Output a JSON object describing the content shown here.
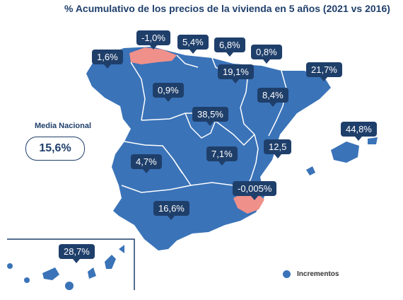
{
  "title": "% Acumulativo de los precios de la vivienda en 5 años (2021 vs 2016)",
  "colors": {
    "increase": "#3a73b8",
    "decrease": "#f0908a",
    "label_bg": "#1f3f6b",
    "borders": "#ffffff"
  },
  "national_average": {
    "label": "Media Nacional",
    "value": "15,6%"
  },
  "legend": {
    "label": "Incrementos"
  },
  "regions": [
    {
      "name": "Galicia",
      "value": "1,6%"
    },
    {
      "name": "Asturias",
      "value": "-1,0%"
    },
    {
      "name": "Cantabria",
      "value": "5,4%"
    },
    {
      "name": "País Vasco",
      "value": "6,8%"
    },
    {
      "name": "Navarra",
      "value": "0,8%"
    },
    {
      "name": "La Rioja",
      "value": "19,1%"
    },
    {
      "name": "Cataluña",
      "value": "21,7%"
    },
    {
      "name": "Aragón",
      "value": "8,4%"
    },
    {
      "name": "Castilla y León",
      "value": "0,9%"
    },
    {
      "name": "Madrid",
      "value": "38,5%"
    },
    {
      "name": "Islas Baleares",
      "value": "44,8%"
    },
    {
      "name": "Comunidad Valenciana",
      "value": "12,5"
    },
    {
      "name": "Castilla-La Mancha",
      "value": "7,1%"
    },
    {
      "name": "Extremadura",
      "value": "4,7%"
    },
    {
      "name": "Murcia",
      "value": "-0,005%"
    },
    {
      "name": "Andalucía",
      "value": "16,6%"
    },
    {
      "name": "Canarias",
      "value": "28,7%"
    }
  ]
}
